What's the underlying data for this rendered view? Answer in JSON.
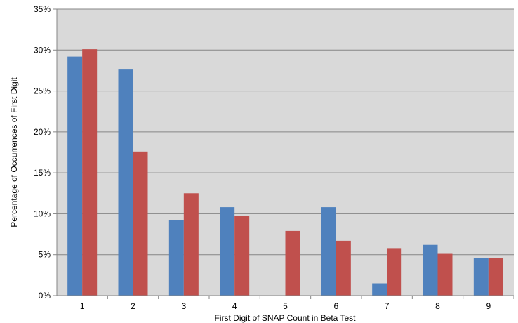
{
  "chart_data": {
    "type": "bar",
    "title": "",
    "xlabel": "First Digit of SNAP Count in Beta Test",
    "ylabel": "Percentage of Occurrences of First Digit",
    "categories": [
      "1",
      "2",
      "3",
      "4",
      "5",
      "6",
      "7",
      "8",
      "9"
    ],
    "series": [
      {
        "values": [
          29.2,
          27.7,
          9.2,
          10.8,
          0.0,
          10.8,
          1.5,
          6.2,
          4.6
        ],
        "color": "#4f81bd"
      },
      {
        "values": [
          30.1,
          17.6,
          12.5,
          9.7,
          7.9,
          6.7,
          5.8,
          5.1,
          4.6
        ],
        "color": "#c0504d"
      }
    ],
    "ylim": [
      0,
      35
    ],
    "yticks": [
      0,
      5,
      10,
      15,
      20,
      25,
      30,
      35
    ],
    "ytick_labels": [
      "0%",
      "5%",
      "10%",
      "15%",
      "20%",
      "25%",
      "30%",
      "35%"
    ],
    "grid": true,
    "legend": "none",
    "plot_background": "#d9d9d9",
    "gridline_color": "#868686"
  }
}
